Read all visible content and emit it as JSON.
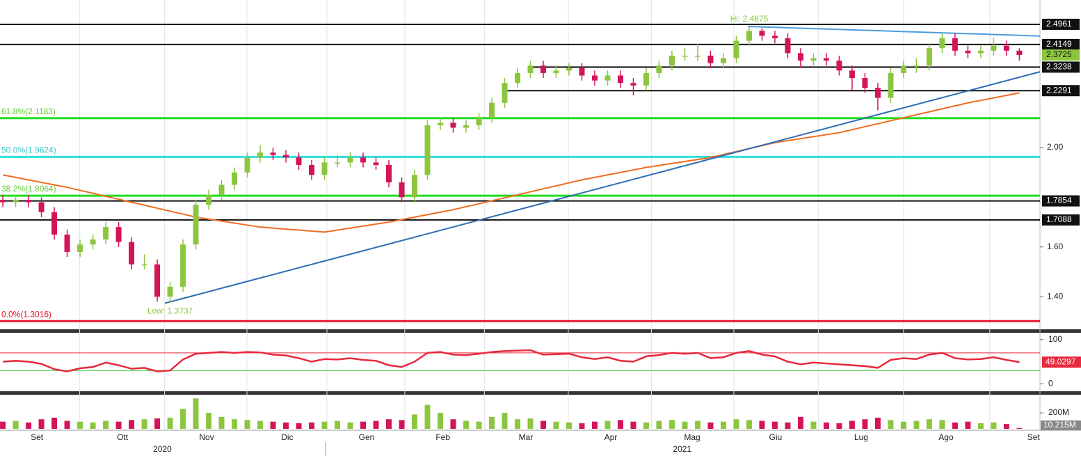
{
  "chart_data": [
    {
      "type": "candlestick",
      "xlim": [
        -0.22,
        80.6
      ],
      "ylim": [
        1.277,
        2.594
      ],
      "yticks": [
        {
          "value": 1.4,
          "label": "1.40"
        },
        {
          "value": 1.6,
          "label": "1.60"
        },
        {
          "value": 2.0,
          "label": "2.00"
        }
      ],
      "up_color": "#8cc63f",
      "down_color": "#d4145a",
      "open": [
        1.79,
        1.78,
        1.79,
        1.78,
        1.74,
        1.65,
        1.58,
        1.61,
        1.63,
        1.68,
        1.62,
        1.53,
        1.53,
        1.4,
        1.44,
        1.61,
        1.77,
        1.81,
        1.85,
        1.9,
        1.96,
        1.98,
        1.97,
        1.96,
        1.93,
        1.89,
        1.94,
        1.94,
        1.96,
        1.94,
        1.93,
        1.86,
        1.8,
        1.89,
        2.09,
        2.1,
        2.08,
        2.09,
        2.12,
        2.18,
        2.26,
        2.3,
        2.33,
        2.3,
        2.31,
        2.32,
        2.29,
        2.27,
        2.29,
        2.26,
        2.25,
        2.3,
        2.33,
        2.37,
        2.37,
        2.37,
        2.34,
        2.36,
        2.43,
        2.47,
        2.45,
        2.44,
        2.38,
        2.35,
        2.36,
        2.35,
        2.31,
        2.28,
        2.24,
        2.2,
        2.3,
        2.33,
        2.33,
        2.4,
        2.44,
        2.39,
        2.38,
        2.39,
        2.41,
        2.39
      ],
      "high": [
        1.81,
        1.81,
        1.81,
        1.8,
        1.76,
        1.67,
        1.63,
        1.65,
        1.7,
        1.7,
        1.64,
        1.57,
        1.55,
        1.46,
        1.63,
        1.79,
        1.83,
        1.87,
        1.92,
        1.98,
        2.01,
        2.0,
        1.99,
        1.98,
        1.95,
        1.96,
        1.97,
        1.98,
        1.98,
        1.96,
        1.95,
        1.88,
        1.91,
        2.11,
        2.12,
        2.12,
        2.11,
        2.14,
        2.2,
        2.28,
        2.32,
        2.35,
        2.35,
        2.33,
        2.34,
        2.34,
        2.31,
        2.31,
        2.31,
        2.28,
        2.32,
        2.35,
        2.39,
        2.4,
        2.42,
        2.39,
        2.38,
        2.45,
        2.4875,
        2.48,
        2.47,
        2.46,
        2.4,
        2.38,
        2.38,
        2.37,
        2.33,
        2.3,
        2.26,
        2.32,
        2.35,
        2.36,
        2.42,
        2.46,
        2.46,
        2.41,
        2.41,
        2.44,
        2.43,
        2.4
      ],
      "low": [
        1.76,
        1.76,
        1.76,
        1.72,
        1.63,
        1.56,
        1.56,
        1.59,
        1.61,
        1.6,
        1.51,
        1.51,
        1.38,
        1.3737,
        1.42,
        1.59,
        1.75,
        1.79,
        1.83,
        1.88,
        1.94,
        1.95,
        1.94,
        1.91,
        1.87,
        1.87,
        1.92,
        1.92,
        1.92,
        1.91,
        1.84,
        1.78,
        1.78,
        1.87,
        2.07,
        2.06,
        2.06,
        2.07,
        2.1,
        2.16,
        2.24,
        2.28,
        2.28,
        2.28,
        2.29,
        2.27,
        2.25,
        2.25,
        2.24,
        2.21,
        2.23,
        2.28,
        2.31,
        2.35,
        2.35,
        2.32,
        2.32,
        2.34,
        2.41,
        2.43,
        2.42,
        2.36,
        2.32,
        2.33,
        2.33,
        2.29,
        2.23,
        2.22,
        2.15,
        2.18,
        2.28,
        2.3,
        2.31,
        2.38,
        2.37,
        2.36,
        2.36,
        2.37,
        2.37,
        2.35
      ],
      "close": [
        1.78,
        1.79,
        1.78,
        1.74,
        1.65,
        1.58,
        1.61,
        1.63,
        1.68,
        1.62,
        1.53,
        1.53,
        1.4,
        1.44,
        1.61,
        1.77,
        1.81,
        1.85,
        1.9,
        1.96,
        1.98,
        1.97,
        1.96,
        1.93,
        1.89,
        1.94,
        1.94,
        1.96,
        1.94,
        1.93,
        1.86,
        1.8,
        1.89,
        2.09,
        2.1,
        2.08,
        2.09,
        2.12,
        2.18,
        2.26,
        2.3,
        2.33,
        2.3,
        2.31,
        2.32,
        2.29,
        2.27,
        2.29,
        2.26,
        2.25,
        2.3,
        2.33,
        2.37,
        2.37,
        2.37,
        2.34,
        2.36,
        2.43,
        2.47,
        2.45,
        2.44,
        2.38,
        2.35,
        2.36,
        2.35,
        2.31,
        2.28,
        2.24,
        2.2,
        2.3,
        2.33,
        2.33,
        2.4,
        2.44,
        2.39,
        2.38,
        2.39,
        2.41,
        2.39,
        2.3725
      ],
      "moving_average": {
        "color": "#f26c1f",
        "x": [
          0,
          5,
          10,
          15,
          20,
          25,
          30,
          35,
          40,
          45,
          50,
          55,
          60,
          65,
          70,
          75,
          79
        ],
        "values": [
          1.89,
          1.84,
          1.78,
          1.72,
          1.68,
          1.66,
          1.7,
          1.75,
          1.81,
          1.87,
          1.92,
          1.96,
          2.02,
          2.06,
          2.12,
          2.18,
          2.22
        ]
      },
      "levels": {
        "values": [
          2.4961,
          2.4149,
          2.3238,
          2.2291,
          1.7854,
          1.7088
        ],
        "x_start": [
          null,
          null,
          41,
          38.8,
          null,
          null
        ]
      },
      "fibonacci": [
        {
          "value": 2.1183,
          "label": "61.8%(2.1183)",
          "color": "#22dd22",
          "text_color": "#66cc33"
        },
        {
          "value": 1.9624,
          "label": "50.0%(1.9624)",
          "color": "#33dddd",
          "text_color": "#33cccc"
        },
        {
          "value": 1.8064,
          "label": "38.2%(1.8064)",
          "color": "#22dd22",
          "text_color": "#66cc33"
        },
        {
          "value": 1.3016,
          "label": "0.0%(1.3016)",
          "color": "#e8182c",
          "text_color": "#e8182c"
        }
      ],
      "trendlines": [
        {
          "x": [
            12.6,
            80.6
          ],
          "y": [
            1.3737,
            2.305
          ],
          "color": "#2e6db4"
        },
        {
          "x": [
            57.9,
            80.6
          ],
          "y": [
            2.4875,
            2.449
          ],
          "color": "#4a9be0"
        }
      ],
      "annotations": [
        {
          "text": "Hi: 2.4875",
          "x": 58,
          "y": 2.4875,
          "color": "#8cc63f"
        },
        {
          "text": "Low: 1.3737",
          "x": 13,
          "y": 1.3737,
          "color": "#8cc63f"
        }
      ]
    },
    {
      "type": "line",
      "ylim": [
        -13.8,
        112.3
      ],
      "yticks": [
        0,
        100
      ],
      "color": "#e8283c",
      "bands": [
        {
          "value": 70,
          "color": "#e8283c"
        },
        {
          "value": 30,
          "color": "#33cc33"
        }
      ],
      "values": [
        50,
        52,
        50,
        45,
        33,
        28,
        35,
        38,
        48,
        42,
        34,
        36,
        28,
        30,
        55,
        68,
        70,
        72,
        70,
        72,
        71,
        66,
        64,
        58,
        50,
        56,
        55,
        58,
        54,
        52,
        42,
        38,
        50,
        70,
        72,
        66,
        65,
        68,
        72,
        74,
        75,
        76,
        66,
        67,
        68,
        60,
        56,
        60,
        52,
        50,
        62,
        65,
        70,
        68,
        70,
        58,
        60,
        70,
        74,
        66,
        62,
        50,
        44,
        48,
        46,
        44,
        42,
        40,
        36,
        54,
        58,
        56,
        66,
        70,
        58,
        55,
        56,
        60,
        54,
        49.0297
      ]
    },
    {
      "type": "bar",
      "ylim": [
        0,
        418
      ],
      "yticks": [
        {
          "value": 200,
          "label": "200M"
        }
      ],
      "values": [
        90,
        100,
        80,
        120,
        140,
        100,
        90,
        80,
        100,
        90,
        110,
        120,
        130,
        140,
        250,
        380,
        200,
        150,
        120,
        110,
        100,
        90,
        80,
        70,
        80,
        90,
        100,
        80,
        90,
        100,
        120,
        110,
        180,
        300,
        200,
        120,
        100,
        90,
        150,
        200,
        120,
        130,
        100,
        90,
        80,
        70,
        90,
        100,
        110,
        90,
        80,
        100,
        110,
        90,
        100,
        80,
        90,
        120,
        110,
        100,
        90,
        80,
        150,
        90,
        80,
        70,
        100,
        120,
        140,
        110,
        90,
        100,
        120,
        110,
        80,
        90,
        70,
        80,
        60,
        10.215
      ],
      "value_labels": [
        null,
        null,
        null,
        null,
        null,
        null,
        null,
        null,
        null,
        null,
        null,
        null,
        null,
        null,
        null,
        null,
        null,
        null,
        null,
        null,
        null,
        null,
        null,
        null,
        null,
        null,
        null,
        null,
        null,
        null,
        null,
        null,
        null,
        null,
        null,
        null,
        null,
        null,
        null,
        null,
        null,
        null,
        null,
        null,
        null,
        null,
        null,
        null,
        null,
        null,
        null,
        null,
        null,
        null,
        null,
        null,
        null,
        null,
        null,
        null,
        null,
        null,
        null,
        null,
        null,
        null,
        null,
        null,
        null,
        null,
        null,
        null,
        null,
        null,
        null,
        null,
        null,
        null,
        null,
        "10.215M"
      ],
      "xticks": [
        {
          "value": 2.65,
          "label": "Set"
        },
        {
          "value": 9.3,
          "label": "Ott"
        },
        {
          "value": 15.84,
          "label": "Nov"
        },
        {
          "value": 22.1,
          "label": "Dic"
        },
        {
          "value": 28.27,
          "label": "Gen"
        },
        {
          "value": 34.2,
          "label": "Feb"
        },
        {
          "value": 40.65,
          "label": "Mar"
        },
        {
          "value": 47.24,
          "label": "Apr"
        },
        {
          "value": 53.57,
          "label": "Mag"
        },
        {
          "value": 60.05,
          "label": "Giu"
        },
        {
          "value": 66.7,
          "label": "Lug"
        },
        {
          "value": 73.3,
          "label": "Ago"
        },
        {
          "value": 80.1,
          "label": "Set"
        }
      ],
      "year_ticks": [
        {
          "value": 12.4,
          "label": "2020"
        },
        {
          "value": 52.8,
          "label": "2021"
        }
      ]
    }
  ]
}
